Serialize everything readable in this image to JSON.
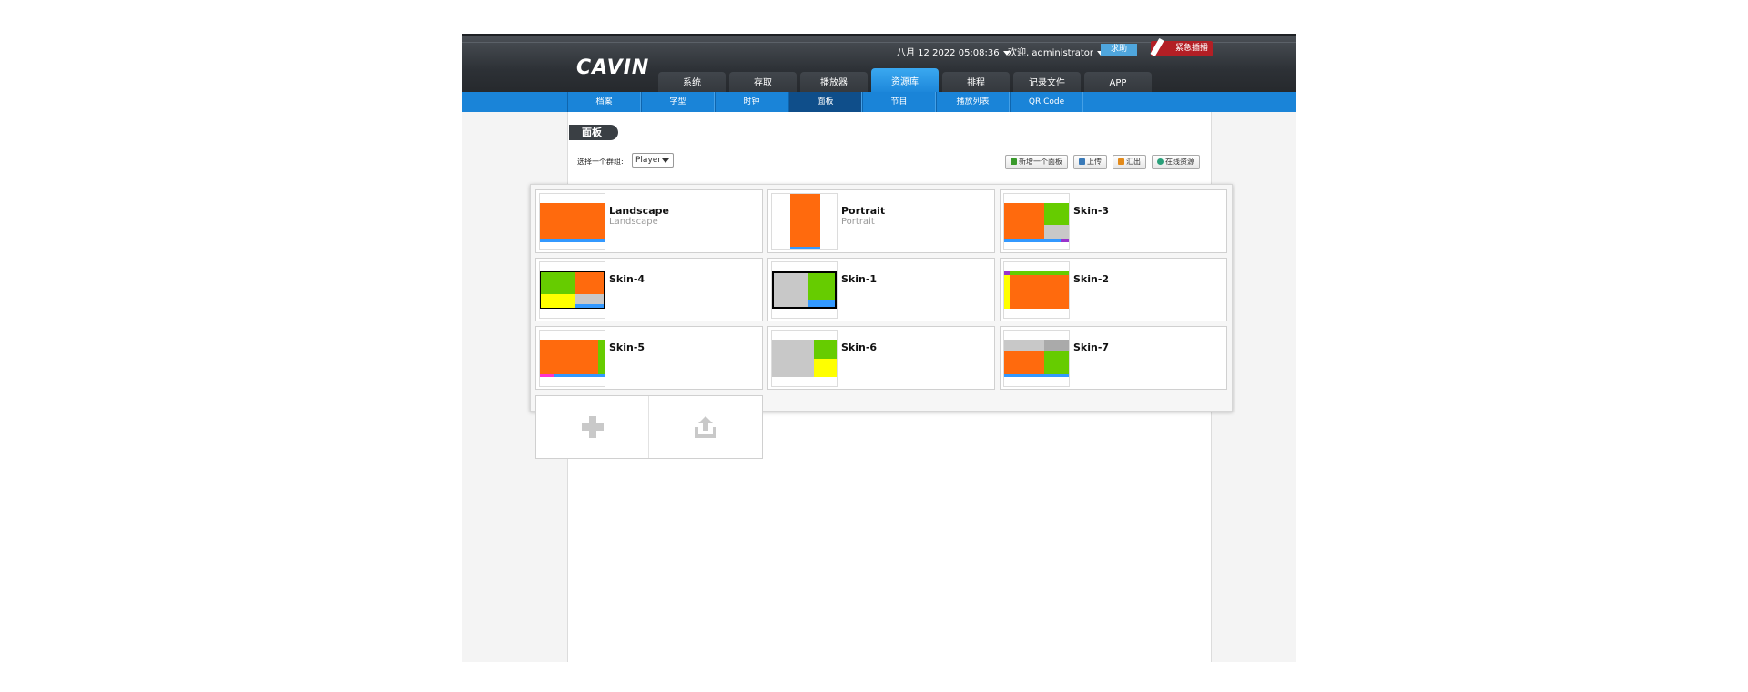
{
  "header": {
    "logo": "CAVIN",
    "datetime": "八月 12 2022 05:08:36",
    "welcome": "欢迎, administrator",
    "help_label": "求助",
    "emergency_label": "紧急插播",
    "tabs": [
      {
        "label": "系统"
      },
      {
        "label": "存取"
      },
      {
        "label": "播放器"
      },
      {
        "label": "资源库",
        "active": true
      },
      {
        "label": "排程"
      },
      {
        "label": "记录文件"
      },
      {
        "label": "APP"
      }
    ]
  },
  "subnav": {
    "items": [
      {
        "label": "档案"
      },
      {
        "label": "字型"
      },
      {
        "label": "时钟"
      },
      {
        "label": "面板",
        "active": true
      },
      {
        "label": "节目"
      },
      {
        "label": "播放列表"
      },
      {
        "label": "QR Code"
      }
    ]
  },
  "page": {
    "title": "面板",
    "group_label": "选择一个群组:",
    "group_value": "Player",
    "actions": {
      "new": "新增一个面板",
      "upload": "上传",
      "export": "汇出",
      "online": "在线资源"
    }
  },
  "panels": [
    {
      "title": "Landscape",
      "subtitle": "Landscape"
    },
    {
      "title": "Portrait",
      "subtitle": "Portrait"
    },
    {
      "title": "Skin-3",
      "subtitle": ""
    },
    {
      "title": "Skin-4",
      "subtitle": ""
    },
    {
      "title": "Skin-1",
      "subtitle": ""
    },
    {
      "title": "Skin-2",
      "subtitle": ""
    },
    {
      "title": "Skin-5",
      "subtitle": ""
    },
    {
      "title": "Skin-6",
      "subtitle": ""
    },
    {
      "title": "Skin-7",
      "subtitle": ""
    }
  ],
  "colors": {
    "orange": "#ff6a0d",
    "green": "#66cc00",
    "yellow": "#ffff00",
    "gray": "#c8c8c8",
    "blue": "#3399ff",
    "purple": "#9933cc",
    "magenta": "#ff33cc",
    "accent": "#1a84d8"
  },
  "icons": {
    "add": "plus-icon",
    "upload": "upload-icon"
  }
}
